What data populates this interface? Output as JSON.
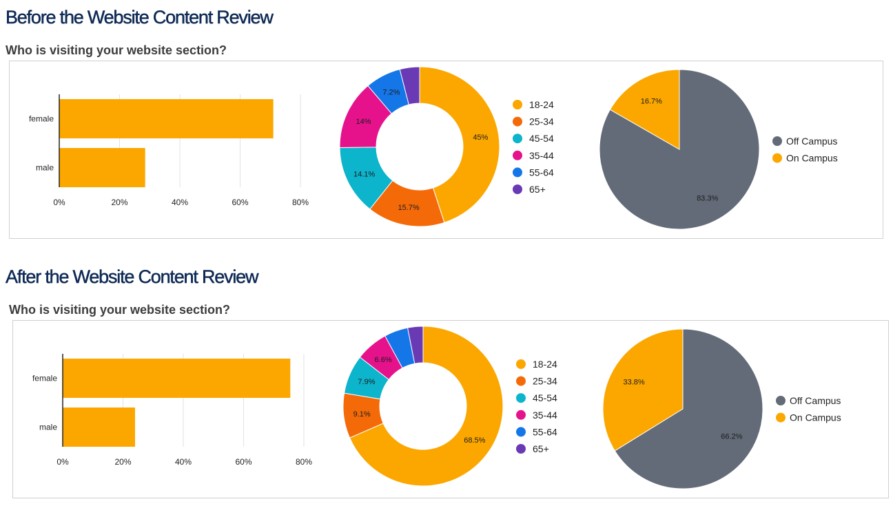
{
  "sections": [
    {
      "title": "Before the Website Content Review",
      "subtitle": "Who is visiting your website section?",
      "bar_chart": {
        "categories": [
          "female",
          "male"
        ],
        "values": [
          71,
          28.5
        ],
        "x_ticks": [
          "0%",
          "20%",
          "40%",
          "60%",
          "80%"
        ],
        "x_max": 80,
        "color": "#FBA700"
      },
      "donut_chart": {
        "legend": [
          "18-24",
          "25-34",
          "45-54",
          "35-44",
          "55-64",
          "65+"
        ],
        "slices": [
          {
            "label": "18-24",
            "value": 45,
            "text": "45%",
            "color": "#FBA700"
          },
          {
            "label": "25-34",
            "value": 15.7,
            "text": "15.7%",
            "color": "#F46A08"
          },
          {
            "label": "45-54",
            "value": 14.1,
            "text": "14.1%",
            "color": "#0CB4CC"
          },
          {
            "label": "35-44",
            "value": 14,
            "text": "14%",
            "color": "#E5128C"
          },
          {
            "label": "55-64",
            "value": 7.2,
            "text": "7.2%",
            "color": "#1576E8"
          },
          {
            "label": "65+",
            "value": 4,
            "text": "",
            "color": "#6A3AB5"
          }
        ]
      },
      "pie_chart": {
        "legend": [
          "Off Campus",
          "On Campus"
        ],
        "slices": [
          {
            "label": "Off Campus",
            "value": 83.3,
            "text": "83.3%",
            "color": "#636B78"
          },
          {
            "label": "On Campus",
            "value": 16.7,
            "text": "16.7%",
            "color": "#FBA700"
          }
        ]
      }
    },
    {
      "title": "After the Website Content Review",
      "subtitle": "Who is visiting your website section?",
      "bar_chart": {
        "categories": [
          "female",
          "male"
        ],
        "values": [
          75.5,
          24
        ],
        "x_ticks": [
          "0%",
          "20%",
          "40%",
          "60%",
          "80%"
        ],
        "x_max": 80,
        "color": "#FBA700"
      },
      "donut_chart": {
        "legend": [
          "18-24",
          "25-34",
          "45-54",
          "35-44",
          "55-64",
          "65+"
        ],
        "slices": [
          {
            "label": "18-24",
            "value": 68.5,
            "text": "68.5%",
            "color": "#FBA700"
          },
          {
            "label": "25-34",
            "value": 9.1,
            "text": "9.1%",
            "color": "#F46A08"
          },
          {
            "label": "45-54",
            "value": 7.9,
            "text": "7.9%",
            "color": "#0CB4CC"
          },
          {
            "label": "35-44",
            "value": 6.6,
            "text": "6.6%",
            "color": "#E5128C"
          },
          {
            "label": "55-64",
            "value": 4.8,
            "text": "",
            "color": "#1576E8"
          },
          {
            "label": "65+",
            "value": 3.1,
            "text": "",
            "color": "#6A3AB5"
          }
        ]
      },
      "pie_chart": {
        "legend": [
          "Off Campus",
          "On Campus"
        ],
        "slices": [
          {
            "label": "Off Campus",
            "value": 66.2,
            "text": "66.2%",
            "color": "#636B78"
          },
          {
            "label": "On Campus",
            "value": 33.8,
            "text": "33.8%",
            "color": "#FBA700"
          }
        ]
      }
    }
  ],
  "chart_data": [
    {
      "type": "bar",
      "orientation": "horizontal",
      "title": "",
      "categories": [
        "female",
        "male"
      ],
      "values": [
        71,
        28.5
      ],
      "unit": "%",
      "xlim": [
        0,
        80
      ]
    },
    {
      "type": "pie",
      "style": "donut",
      "title": "",
      "categories": [
        "18-24",
        "25-34",
        "45-54",
        "35-44",
        "55-64",
        "65+"
      ],
      "values": [
        45,
        15.7,
        14.1,
        14,
        7.2,
        4
      ]
    },
    {
      "type": "pie",
      "title": "",
      "categories": [
        "Off Campus",
        "On Campus"
      ],
      "values": [
        83.3,
        16.7
      ]
    },
    {
      "type": "bar",
      "orientation": "horizontal",
      "title": "",
      "categories": [
        "female",
        "male"
      ],
      "values": [
        75.5,
        24
      ],
      "unit": "%",
      "xlim": [
        0,
        80
      ]
    },
    {
      "type": "pie",
      "style": "donut",
      "title": "",
      "categories": [
        "18-24",
        "25-34",
        "45-54",
        "35-44",
        "55-64",
        "65+"
      ],
      "values": [
        68.5,
        9.1,
        7.9,
        6.6,
        4.8,
        3.1
      ]
    },
    {
      "type": "pie",
      "title": "",
      "categories": [
        "Off Campus",
        "On Campus"
      ],
      "values": [
        66.2,
        33.8
      ]
    }
  ]
}
